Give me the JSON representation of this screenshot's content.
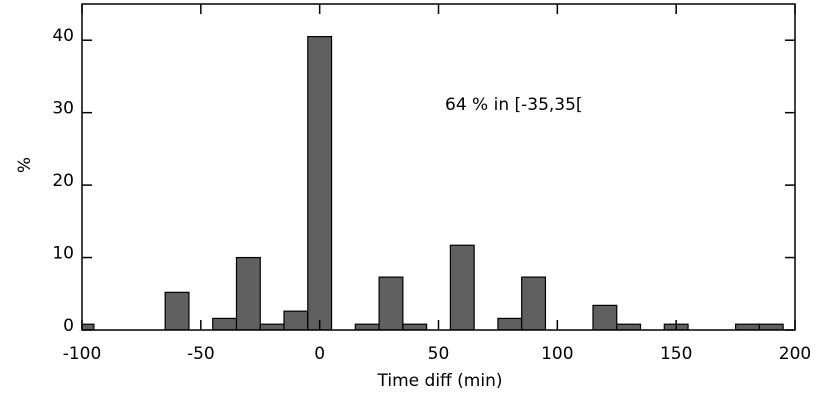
{
  "chart_data": {
    "type": "histogram",
    "xlabel": "Time diff (min)",
    "ylabel": "%",
    "annotation": "64 % in [-35,35[",
    "bins": [
      -105,
      -95,
      -85,
      -75,
      -65,
      -55,
      -45,
      -35,
      -25,
      -15,
      -5,
      5,
      15,
      25,
      35,
      45,
      55,
      65,
      75,
      85,
      95,
      105,
      115,
      125,
      135,
      145,
      155,
      165,
      175,
      185,
      195,
      205
    ],
    "counts": [
      0.8,
      0,
      0,
      0,
      5.2,
      0,
      1.6,
      10,
      0.8,
      2.6,
      40.5,
      0,
      0.8,
      7.3,
      0.8,
      0,
      11.7,
      0,
      1.6,
      7.3,
      0,
      0,
      3.4,
      0.8,
      0,
      0.8,
      0,
      0,
      0.8,
      0.8,
      0
    ],
    "color": "#606060",
    "xlim": [
      -100,
      200
    ],
    "xticks": [
      -100,
      -50,
      0,
      50,
      100,
      150,
      200
    ],
    "ylim": [
      0,
      45
    ],
    "yticks": [
      0,
      10,
      20,
      30,
      40
    ]
  }
}
